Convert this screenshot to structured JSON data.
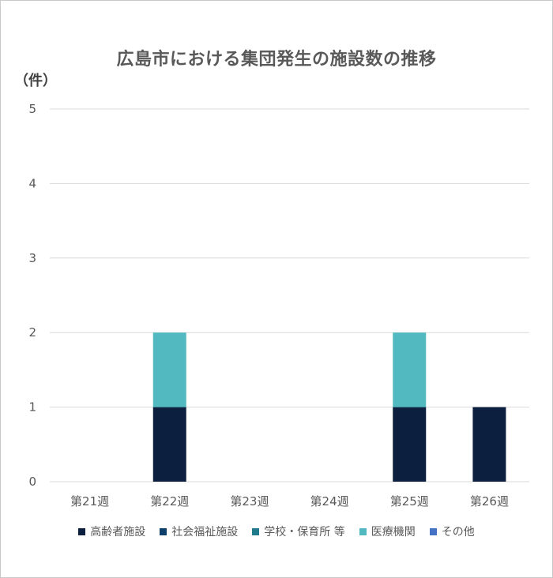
{
  "chart_data": {
    "type": "bar",
    "stacked": true,
    "title": "広島市における集団発生の施設数の推移",
    "ylabel": "（件）",
    "xlabel": "",
    "ylim": [
      0,
      5
    ],
    "yticks": [
      "0",
      "1",
      "2",
      "3",
      "4",
      "5"
    ],
    "grid": true,
    "legend_position": "bottom",
    "categories": [
      "第21週",
      "第22週",
      "第23週",
      "第24週",
      "第25週",
      "第26週"
    ],
    "series": [
      {
        "name": "高齢者施設",
        "color": "#0d1f3f",
        "values": [
          0,
          1,
          0,
          0,
          1,
          1
        ]
      },
      {
        "name": "社会福祉施設",
        "color": "#0e3f6b",
        "values": [
          0,
          0,
          0,
          0,
          0,
          0
        ]
      },
      {
        "name": "学校・保育所 等",
        "color": "#1f7a8c",
        "values": [
          0,
          0,
          0,
          0,
          0,
          0
        ]
      },
      {
        "name": "医療機関",
        "color": "#52b9c0",
        "values": [
          0,
          1,
          0,
          0,
          1,
          0
        ]
      },
      {
        "name": "その他",
        "color": "#4472c4",
        "values": [
          0,
          0,
          0,
          0,
          0,
          0
        ]
      }
    ]
  }
}
